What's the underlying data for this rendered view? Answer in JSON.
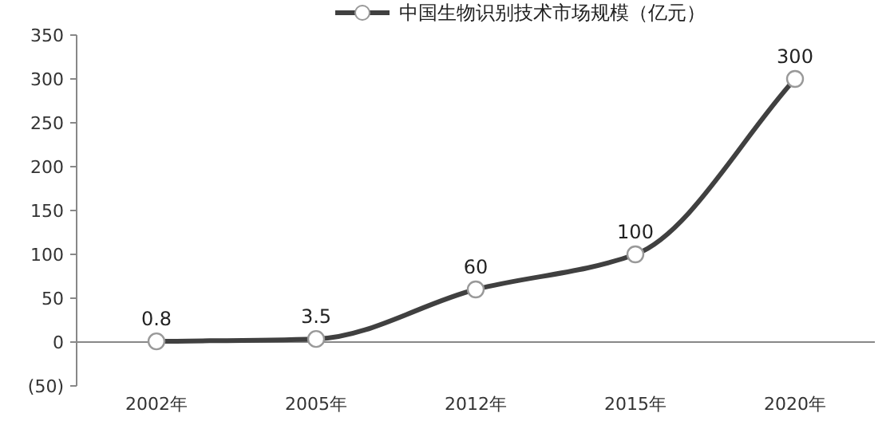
{
  "chart_data": {
    "type": "line",
    "categories": [
      "2002年",
      "2005年",
      "2012年",
      "2015年",
      "2020年"
    ],
    "series": [
      {
        "name": "中国生物识别技术市场规模（亿元）",
        "color": "#404040",
        "values": [
          0.8,
          3.5,
          60,
          100,
          300
        ]
      }
    ],
    "ylim": [
      -50,
      350
    ],
    "yticks": [
      {
        "value": -50,
        "label": "(50)"
      },
      0,
      50,
      100,
      150,
      200,
      250,
      300,
      350
    ],
    "data_labels": true,
    "legend": "top",
    "marker": "circle",
    "line_style": "solid"
  }
}
